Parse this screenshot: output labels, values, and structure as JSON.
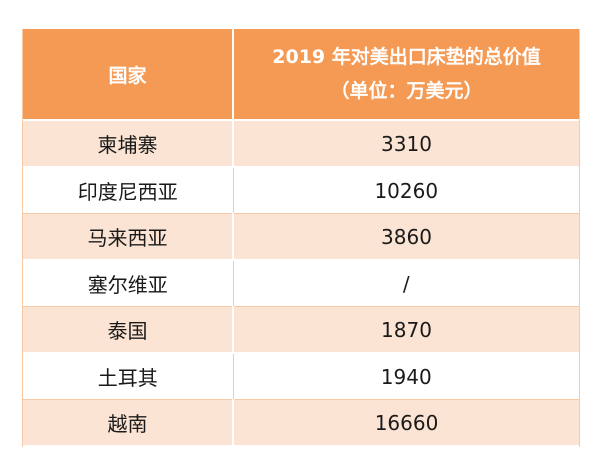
{
  "header": {
    "country_label": "国家",
    "value_label_line1": "2019 年对美出口床垫的总价值",
    "value_label_line2": "（单位：万美元）"
  },
  "rows": [
    {
      "country": "柬埔寨",
      "value": "3310"
    },
    {
      "country": "印度尼西亚",
      "value": "10260"
    },
    {
      "country": "马来西亚",
      "value": "3860"
    },
    {
      "country": "塞尔维亚",
      "value": "/"
    },
    {
      "country": "泰国",
      "value": "1870"
    },
    {
      "country": "土耳其",
      "value": "1940"
    },
    {
      "country": "越南",
      "value": "16660"
    }
  ],
  "colors": {
    "header_bg": "#f59a55",
    "odd_row_bg": "#fbe4d3",
    "even_row_bg": "#ffffff"
  }
}
